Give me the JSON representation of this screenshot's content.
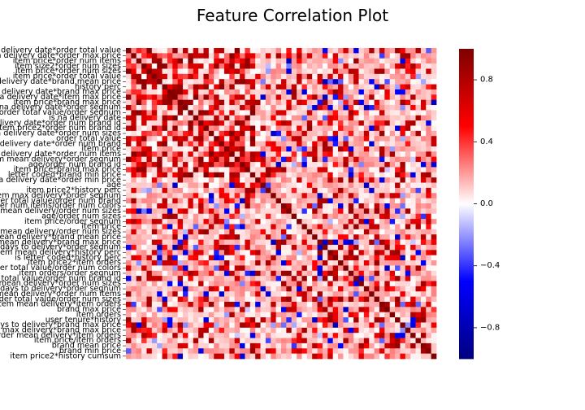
{
  "chart_data": {
    "type": "heatmap",
    "title": "Feature Correlation Plot",
    "xlabel": "",
    "ylabel": "",
    "labels": [
      "is na delivery date*order total value",
      "is na delivery date*order max price",
      "item price*order num items",
      "item size2*order num sizes",
      "item price*order num sizes",
      "item price*order total value",
      "is na delivery date*brand mean price",
      "history perc",
      "is na delivery date*brand max price",
      "is na delivery date*item max price",
      "item price*brand max price",
      "is na delivery date*order segnum",
      "order total value/order segnum",
      "is na delivery date",
      "is na delivery date*order num brand id",
      "item price2*order num brand id",
      "is na delivery date*order num sizes",
      "order total value",
      "is na delivery date*order num brand",
      "item price",
      "is na delivery date*order num items",
      "item mean delivery*order segnum",
      "age/order num brand id",
      "item price*brand max price",
      "letter coded*brand min price",
      "is na delivery date*order min price",
      "age",
      "item price2*history perc",
      "item max delivery*order segnum",
      "order total value/order num brand",
      "order num items/order num colors",
      "item mean delivery/order num sizes",
      "age/order num sizes",
      "item price/order segnum",
      "item price",
      "item mean delivery/order num sizes",
      "item mean delivery*brand mean price",
      "item mean delivery*brand max price",
      "days to delivery*order segnum",
      "item mean delivery*history perc",
      "is letter coded*history perc",
      "item price2*item orders",
      "order total value/order num colors",
      "item orders/order segnum",
      "order total value/order num brand id",
      "item mean delivery*order num sizes",
      "days to delivery*order segnum",
      "item mean delivery*order num items",
      "order total value/order num sizes",
      "item mean delivery*item orders",
      "brand max price",
      "item orders",
      "user tenure*history",
      "days to delivery*brand max price",
      "item max delivery*brand max price",
      "order mean delivery*item orders",
      "item price/item orders",
      "brand mean price",
      "brand min price",
      "item price2*history cumsum"
    ],
    "value_range": [
      -1,
      1
    ],
    "colormap": "seismic",
    "colorbar_ticks": [
      "0.8",
      "0.4",
      "0.0",
      "−0.4",
      "−0.8"
    ],
    "colorbar_tick_values": [
      0.8,
      0.4,
      0.0,
      -0.4,
      -0.8
    ],
    "grid": false,
    "matrix_generation": "Symmetric correlation matrix with 1.0 on the diagonal; off-diagonal cells are mostly weak positive values with strong positive blocks near the top-left and scattered negative cells."
  }
}
